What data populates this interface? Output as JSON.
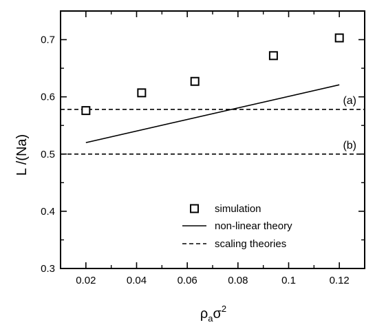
{
  "chart_data": {
    "type": "scatter",
    "xlabel": "ρ_a σ^2",
    "xlabel_parts": {
      "base": "ρ",
      "sub": "a",
      "mid": "σ",
      "sup": "2"
    },
    "ylabel": "L /(Na)",
    "xlim": [
      0.01,
      0.13
    ],
    "ylim": [
      0.3,
      0.75
    ],
    "xticks": [
      0.02,
      0.04,
      0.06,
      0.08,
      0.1,
      0.12
    ],
    "xtick_labels": [
      "0.02",
      "0.04",
      "0.06",
      "0.08",
      "0.1",
      "0.12"
    ],
    "xminor": [
      0.01,
      0.03,
      0.05,
      0.07,
      0.09,
      0.11,
      0.13
    ],
    "yticks": [
      0.3,
      0.4,
      0.5,
      0.6,
      0.7
    ],
    "ytick_labels": [
      "0.3",
      "0.4",
      "0.5",
      "0.6",
      "0.7"
    ],
    "yminor": [
      0.35,
      0.45,
      0.55,
      0.65,
      0.75
    ],
    "grid": false,
    "legend_position": "bottom-center",
    "series": [
      {
        "name": "simulation",
        "kind": "marker-square",
        "x": [
          0.02,
          0.042,
          0.063,
          0.094,
          0.12
        ],
        "y": [
          0.576,
          0.607,
          0.627,
          0.672,
          0.703
        ]
      },
      {
        "name": "non-linear theory",
        "kind": "solid-line",
        "x": [
          0.02,
          0.12
        ],
        "y": [
          0.52,
          0.621
        ]
      },
      {
        "name": "scaling theories",
        "kind": "dashed-line",
        "lines": [
          {
            "label": "(a)",
            "y": 0.578
          },
          {
            "label": "(b)",
            "y": 0.5
          }
        ]
      }
    ]
  }
}
